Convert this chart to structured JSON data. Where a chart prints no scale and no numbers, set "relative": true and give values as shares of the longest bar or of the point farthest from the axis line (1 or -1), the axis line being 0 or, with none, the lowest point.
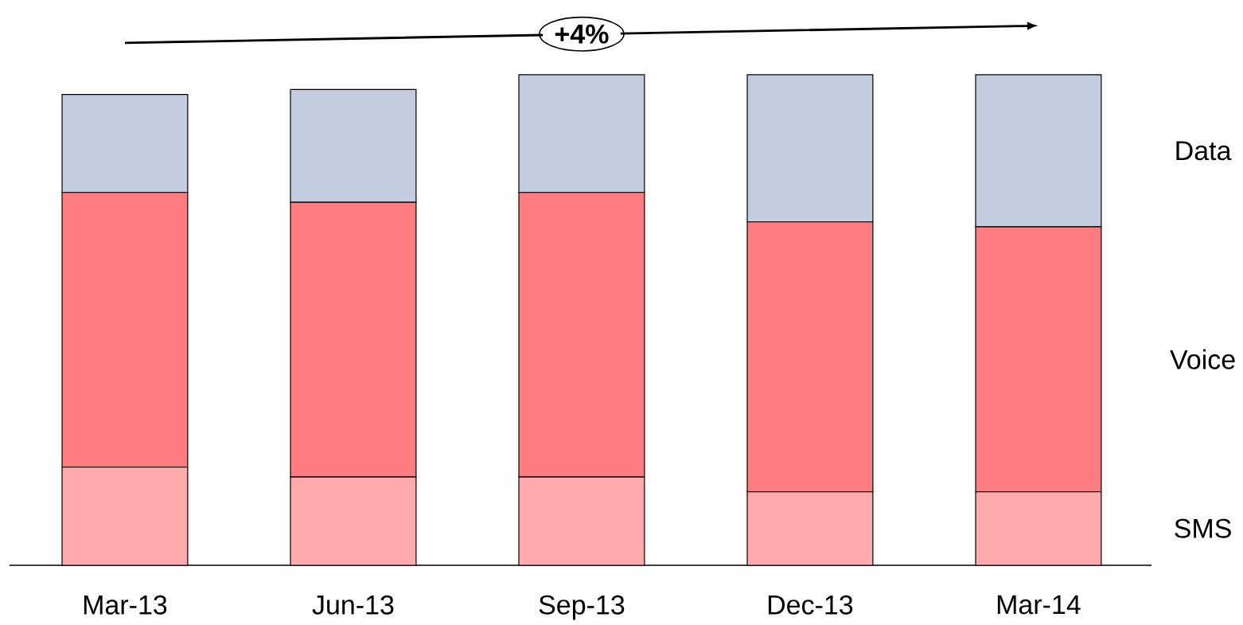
{
  "chart_data": {
    "type": "bar",
    "stacked": true,
    "relative": true,
    "categories": [
      "Mar-13",
      "Jun-13",
      "Sep-13",
      "Dec-13",
      "Mar-14"
    ],
    "series": [
      {
        "name": "SMS",
        "color": "#ffabad",
        "values": [
          0.2,
          0.18,
          0.18,
          0.15,
          0.15
        ]
      },
      {
        "name": "Voice",
        "color": "#ff7c80",
        "values": [
          0.56,
          0.56,
          0.58,
          0.55,
          0.54
        ]
      },
      {
        "name": "Data",
        "color": "#c2cde0",
        "values": [
          0.2,
          0.23,
          0.24,
          0.3,
          0.31
        ]
      }
    ],
    "annotations": [
      "+4%"
    ]
  }
}
